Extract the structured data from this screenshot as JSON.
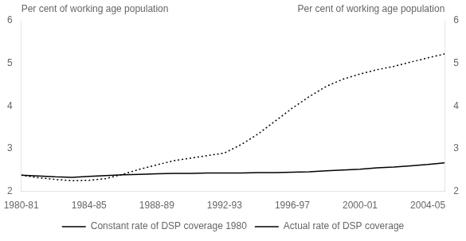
{
  "chart_data": {
    "type": "line",
    "x": [
      0,
      1,
      2,
      3,
      4,
      5,
      6,
      7,
      8,
      9,
      10,
      11,
      12,
      13,
      14,
      15,
      16,
      17,
      18,
      19,
      20,
      21,
      22,
      23,
      24,
      25
    ],
    "xlim": [
      0,
      25
    ],
    "xticks": [
      {
        "value": 0,
        "label": "1980-81"
      },
      {
        "value": 4,
        "label": "1984-85"
      },
      {
        "value": 8,
        "label": "1988-89"
      },
      {
        "value": 12,
        "label": "1992-93"
      },
      {
        "value": 16,
        "label": "1996-97"
      },
      {
        "value": 20,
        "label": "2000-01"
      },
      {
        "value": 24,
        "label": "2004-05"
      }
    ],
    "ylim": [
      2,
      6
    ],
    "yticks": [
      2,
      3,
      4,
      5,
      6
    ],
    "y2lim": [
      2,
      6
    ],
    "y2ticks": [
      2,
      3,
      4,
      5,
      6
    ],
    "y_label": "Per cent of working age population",
    "y2_label": "Per cent of working age population",
    "series": [
      {
        "name": "Constant rate of DSP coverage 1980",
        "color": "#000000",
        "line_style": "solid",
        "values": [
          2.38,
          2.36,
          2.34,
          2.33,
          2.35,
          2.37,
          2.39,
          2.4,
          2.41,
          2.42,
          2.42,
          2.43,
          2.43,
          2.43,
          2.44,
          2.44,
          2.45,
          2.46,
          2.48,
          2.5,
          2.52,
          2.55,
          2.57,
          2.6,
          2.63,
          2.67
        ]
      },
      {
        "name": "Actual rate of DSP coverage",
        "color": "#000000",
        "line_style": "dotted",
        "values": [
          2.38,
          2.32,
          2.28,
          2.25,
          2.26,
          2.3,
          2.4,
          2.52,
          2.62,
          2.72,
          2.78,
          2.84,
          2.9,
          3.1,
          3.35,
          3.65,
          3.95,
          4.22,
          4.46,
          4.63,
          4.75,
          4.85,
          4.93,
          5.03,
          5.13,
          5.22
        ]
      }
    ],
    "grid": false,
    "legend": "bottom"
  }
}
